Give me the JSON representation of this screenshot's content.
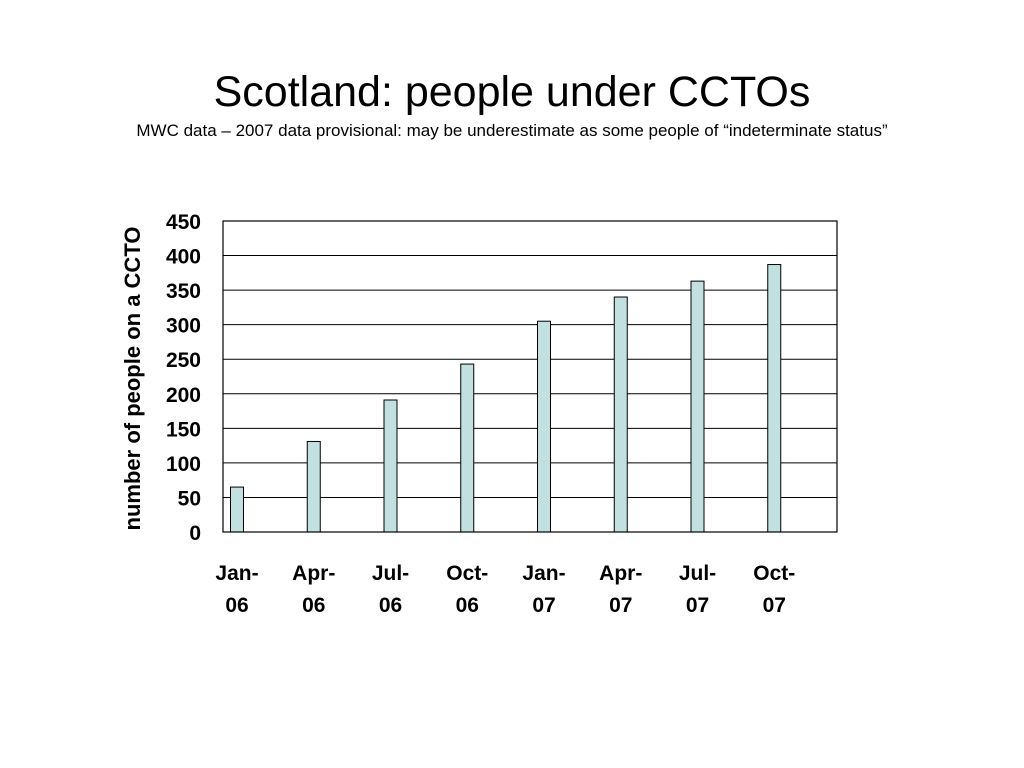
{
  "slide": {
    "title": "Scotland: people under CCTOs",
    "subtitle": "MWC data – 2007 data provisional: may be underestimate as some people of “indeterminate status”"
  },
  "chart_data": {
    "type": "bar",
    "categories": [
      [
        "Jan-",
        "06"
      ],
      [
        "Apr-",
        "06"
      ],
      [
        "Jul-",
        "06"
      ],
      [
        "Oct-",
        "06"
      ],
      [
        "Jan-",
        "07"
      ],
      [
        "Apr-",
        "07"
      ],
      [
        "Jul-",
        "07"
      ],
      [
        "Oct-",
        "07"
      ]
    ],
    "values": [
      65,
      131,
      191,
      243,
      305,
      340,
      363,
      387
    ],
    "ylabel": "number of people on a CCTO",
    "xlabel": "",
    "ylim": [
      0,
      450
    ],
    "yticks": [
      0,
      50,
      100,
      150,
      200,
      250,
      300,
      350,
      400,
      450
    ],
    "grid": true,
    "legend": "none",
    "bar_color": "#c2e0df",
    "bar_edge_color": "#000000"
  }
}
